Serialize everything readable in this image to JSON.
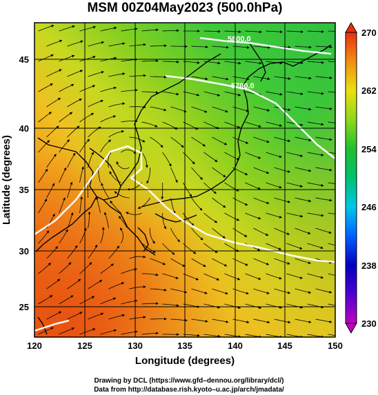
{
  "title": "MSM 00Z04May2023 (500.0hPa)",
  "xlabel": "Longitude (degrees)",
  "ylabel": "Latitude  (degrees)",
  "x_ticks": [
    "120",
    "125",
    "130",
    "135",
    "140",
    "145",
    "150"
  ],
  "y_ticks": [
    "25",
    "30",
    "35",
    "40",
    "45"
  ],
  "colorbar": {
    "ticks": [
      "270",
      "262",
      "254",
      "246",
      "238",
      "230"
    ],
    "min": 230,
    "max": 270,
    "stops": [
      {
        "value": 230,
        "color": "#c000c0"
      },
      {
        "value": 234,
        "color": "#5000d0"
      },
      {
        "value": 238,
        "color": "#0000c0"
      },
      {
        "value": 242,
        "color": "#0060ff"
      },
      {
        "value": 246,
        "color": "#00c8e8"
      },
      {
        "value": 250,
        "color": "#00c070"
      },
      {
        "value": 254,
        "color": "#20c030"
      },
      {
        "value": 258,
        "color": "#90d818"
      },
      {
        "value": 262,
        "color": "#e8e010"
      },
      {
        "value": 266,
        "color": "#f09010"
      },
      {
        "value": 270,
        "color": "#e83010"
      }
    ]
  },
  "contours": [
    {
      "label": "5800.0",
      "value": 5800
    },
    {
      "label": "5700.0",
      "value": 5700
    }
  ],
  "credits": [
    "Drawing by DCL (https://www.gfd–dennou.org/library/dcl/)",
    "Data from http://database.rish.kyoto–u.ac.jp/arch/jmadata/"
  ]
}
